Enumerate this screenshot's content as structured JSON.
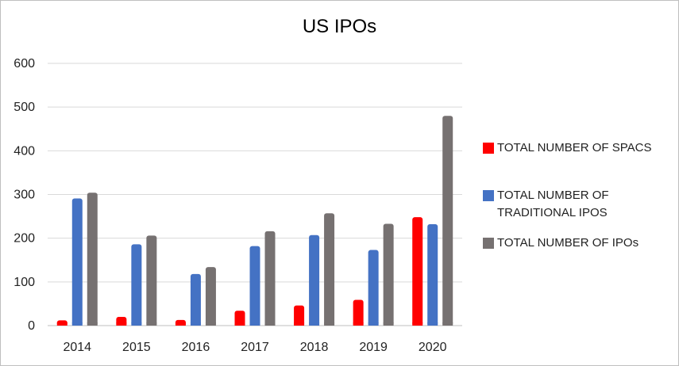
{
  "chart_data": {
    "type": "bar",
    "title": "US IPOs",
    "categories": [
      "2014",
      "2015",
      "2016",
      "2017",
      "2018",
      "2019",
      "2020"
    ],
    "series": [
      {
        "name": "TOTAL NUMBER OF SPACS",
        "color": "#ff0000",
        "values": [
          12,
          20,
          13,
          34,
          46,
          59,
          248
        ]
      },
      {
        "name": "TOTAL NUMBER OF TRADITIONAL IPOS",
        "color": "#4472c4",
        "values": [
          291,
          186,
          118,
          182,
          207,
          173,
          232
        ]
      },
      {
        "name": "TOTAL NUMBER OF IPOs",
        "color": "#767171",
        "values": [
          304,
          206,
          134,
          216,
          257,
          233,
          480
        ]
      }
    ],
    "ylim": [
      0,
      600
    ],
    "yticks": [
      "0",
      "100",
      "200",
      "300",
      "400",
      "500",
      "600"
    ],
    "grid": true,
    "legend_position": "right"
  }
}
